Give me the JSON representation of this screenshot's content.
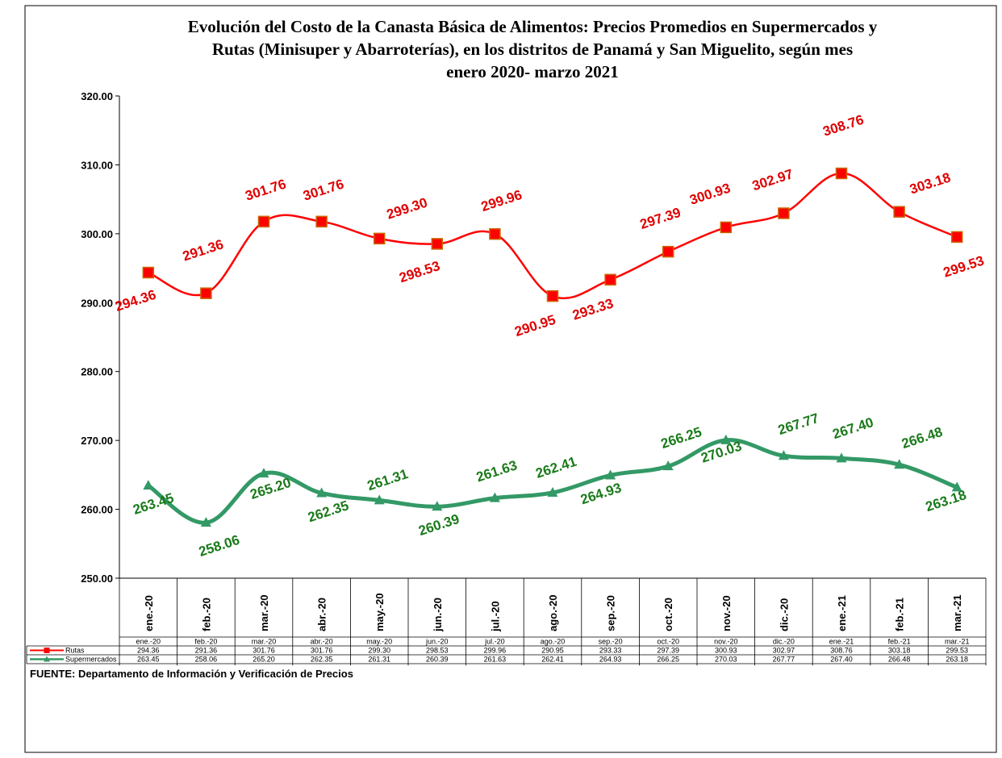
{
  "title_lines": [
    "Evolución del Costo de la Canasta Básica de Alimentos: Precios Promedios en Supermercados y",
    "Rutas (Minisuper y Abarroterías), en  los   distritos de Panamá y San Miguelito,  según mes",
    "enero 2020- marzo 2021"
  ],
  "source": "FUENTE: Departamento de Información y Verificación de Precios",
  "colors": {
    "rutas": "#ff0000",
    "rutas_label": "#e00000",
    "supermercados": "#339966",
    "supermercados_label": "#1a7a1a"
  },
  "chart_data": {
    "type": "line",
    "categories": [
      "ene.-20",
      "feb.-20",
      "mar.-20",
      "abr.-20",
      "may.-20",
      "jun.-20",
      "jul.-20",
      "ago.-20",
      "sep.-20",
      "oct.-20",
      "nov.-20",
      "dic.-20",
      "ene.-21",
      "feb.-21",
      "mar.-21"
    ],
    "ylim": [
      250,
      320
    ],
    "yticks": [
      "250.00",
      "260.00",
      "270.00",
      "280.00",
      "290.00",
      "300.00",
      "310.00",
      "320.00"
    ],
    "series": [
      {
        "name": "Rutas",
        "marker": "square",
        "values": [
          294.36,
          291.36,
          301.76,
          301.76,
          299.3,
          298.53,
          299.96,
          290.95,
          293.33,
          297.39,
          300.93,
          302.97,
          308.76,
          303.18,
          299.53
        ],
        "labels": [
          "294.36",
          "291.36",
          "301.76",
          "301.76",
          "299.30",
          "298.53",
          "299.96",
          "290.95",
          "293.33",
          "297.39",
          "300.93",
          "302.97",
          "308.76",
          "303.18",
          "299.53"
        ]
      },
      {
        "name": "Supermercados",
        "marker": "triangle",
        "values": [
          263.45,
          258.06,
          265.2,
          262.35,
          261.31,
          260.39,
          261.63,
          262.41,
          264.93,
          266.25,
          270.03,
          267.77,
          267.4,
          266.48,
          263.18
        ],
        "labels": [
          "263.45",
          "258.06",
          "265.20",
          "262.35",
          "261.31",
          "260.39",
          "261.63",
          "262.41",
          "264.93",
          "266.25",
          "270.03",
          "267.77",
          "267.40",
          "266.48",
          "263.18"
        ]
      }
    ],
    "grid": false,
    "legend": "data-table below x-axis"
  }
}
